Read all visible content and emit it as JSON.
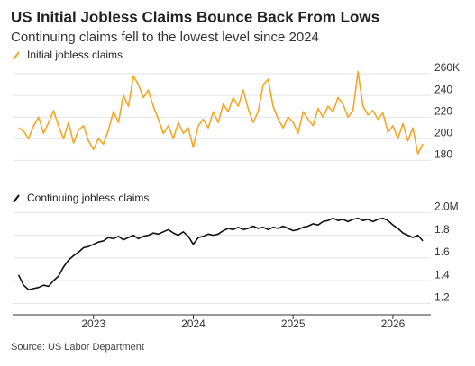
{
  "header": {
    "title": "US Initial Jobless Claims Bounce Back From Lows",
    "subtitle": "Continuing claims fell to the lowest level since 2024"
  },
  "source": "Source: US Labor Department",
  "chart_data": [
    {
      "type": "line",
      "grid": true,
      "x": [
        2022.25,
        2022.3,
        2022.35,
        2022.4,
        2022.45,
        2022.5,
        2022.55,
        2022.6,
        2022.65,
        2022.7,
        2022.75,
        2022.8,
        2022.85,
        2022.9,
        2022.95,
        2023,
        2023.05,
        2023.1,
        2023.15,
        2023.2,
        2023.25,
        2023.3,
        2023.35,
        2023.4,
        2023.45,
        2023.5,
        2023.55,
        2023.6,
        2023.65,
        2023.7,
        2023.75,
        2023.8,
        2023.85,
        2023.9,
        2023.95,
        2024,
        2024.05,
        2024.1,
        2024.15,
        2024.2,
        2024.25,
        2024.3,
        2024.35,
        2024.4,
        2024.45,
        2024.5,
        2024.55,
        2024.6,
        2024.65,
        2024.7,
        2024.75,
        2024.8,
        2024.85,
        2024.9,
        2024.95,
        2025,
        2025.05,
        2025.1,
        2025.15,
        2025.2,
        2025.25,
        2025.3,
        2025.35,
        2025.4,
        2025.45,
        2025.5,
        2025.55,
        2025.6,
        2025.65,
        2025.7,
        2025.75,
        2025.8,
        2025.85,
        2025.9,
        2025.95,
        2026,
        2026.05,
        2026.1,
        2026.15,
        2026.2,
        2026.25,
        2026.3
      ],
      "series": [
        {
          "name": "Initial jobless claims",
          "color": "#f5a623",
          "values": [
            210,
            207,
            200,
            212,
            220,
            205,
            215,
            226,
            212,
            200,
            215,
            196,
            208,
            212,
            198,
            190,
            200,
            195,
            208,
            225,
            215,
            240,
            230,
            258,
            250,
            238,
            245,
            230,
            218,
            205,
            212,
            200,
            215,
            205,
            210,
            192,
            212,
            218,
            210,
            225,
            215,
            232,
            225,
            238,
            230,
            245,
            228,
            215,
            225,
            250,
            255,
            230,
            218,
            210,
            220,
            215,
            205,
            225,
            218,
            212,
            228,
            220,
            230,
            225,
            238,
            232,
            220,
            226,
            262,
            230,
            222,
            226,
            218,
            224,
            206,
            212,
            200,
            214,
            198,
            210,
            186,
            195
          ]
        }
      ],
      "xlim": [
        2022.19,
        2026.38
      ],
      "ylim": [
        172,
        265
      ],
      "yticks": [
        180,
        200,
        220,
        240,
        {
          "value": 260,
          "label": "260K"
        }
      ]
    },
    {
      "type": "line",
      "grid": true,
      "x": [
        2022.25,
        2022.3,
        2022.35,
        2022.4,
        2022.45,
        2022.5,
        2022.55,
        2022.6,
        2022.65,
        2022.7,
        2022.75,
        2022.8,
        2022.85,
        2022.9,
        2022.95,
        2023,
        2023.05,
        2023.1,
        2023.15,
        2023.2,
        2023.25,
        2023.3,
        2023.35,
        2023.4,
        2023.45,
        2023.5,
        2023.55,
        2023.6,
        2023.65,
        2023.7,
        2023.75,
        2023.8,
        2023.85,
        2023.9,
        2023.95,
        2024,
        2024.05,
        2024.1,
        2024.15,
        2024.2,
        2024.25,
        2024.3,
        2024.35,
        2024.4,
        2024.45,
        2024.5,
        2024.55,
        2024.6,
        2024.65,
        2024.7,
        2024.75,
        2024.8,
        2024.85,
        2024.9,
        2024.95,
        2025,
        2025.05,
        2025.1,
        2025.15,
        2025.2,
        2025.25,
        2025.3,
        2025.35,
        2025.4,
        2025.45,
        2025.5,
        2025.55,
        2025.6,
        2025.65,
        2025.7,
        2025.75,
        2025.8,
        2025.85,
        2025.9,
        2025.95,
        2026,
        2026.05,
        2026.1,
        2026.15,
        2026.2,
        2026.25,
        2026.3
      ],
      "series": [
        {
          "name": "Continuing jobless claims",
          "color": "#111111",
          "values": [
            1.45,
            1.36,
            1.32,
            1.33,
            1.34,
            1.36,
            1.35,
            1.4,
            1.44,
            1.52,
            1.58,
            1.62,
            1.65,
            1.69,
            1.7,
            1.72,
            1.74,
            1.75,
            1.78,
            1.77,
            1.79,
            1.76,
            1.78,
            1.8,
            1.77,
            1.79,
            1.8,
            1.82,
            1.81,
            1.83,
            1.85,
            1.82,
            1.8,
            1.83,
            1.79,
            1.72,
            1.78,
            1.79,
            1.81,
            1.8,
            1.81,
            1.84,
            1.86,
            1.85,
            1.87,
            1.85,
            1.86,
            1.88,
            1.86,
            1.87,
            1.85,
            1.87,
            1.86,
            1.88,
            1.86,
            1.84,
            1.85,
            1.87,
            1.88,
            1.9,
            1.89,
            1.92,
            1.93,
            1.95,
            1.93,
            1.94,
            1.92,
            1.94,
            1.95,
            1.93,
            1.94,
            1.92,
            1.94,
            1.95,
            1.93,
            1.89,
            1.86,
            1.82,
            1.8,
            1.78,
            1.8,
            1.75
          ]
        }
      ],
      "xlim": [
        2022.19,
        2026.38
      ],
      "ylim": [
        1.1,
        2.05
      ],
      "yticks": [
        1.2,
        1.4,
        1.6,
        1.8,
        {
          "value": 2,
          "label": "2.0M"
        }
      ],
      "xticks": [
        2023,
        2024,
        2025,
        2026
      ]
    }
  ]
}
